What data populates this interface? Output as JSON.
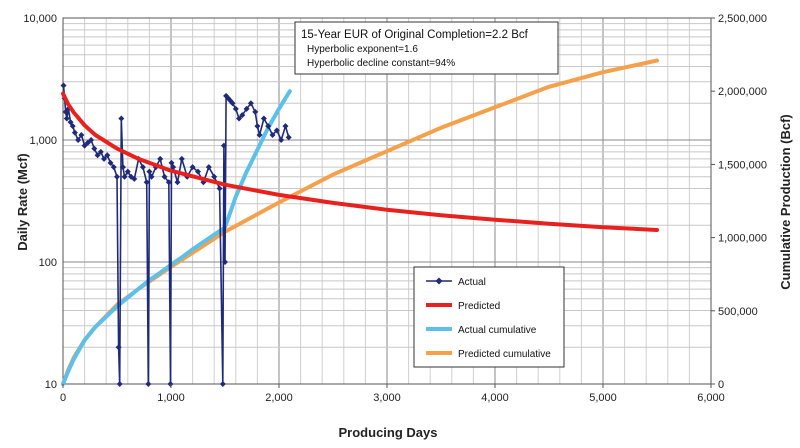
{
  "chart_data": {
    "type": "line",
    "xlabel": "Producing Days",
    "ylabel_left": "Daily Rate (Mcf)",
    "ylabel_right": "Cumulative Production (Bcf)",
    "x_axis": {
      "min": 0,
      "max": 6000,
      "ticks": [
        0,
        1000,
        2000,
        3000,
        4000,
        5000,
        6000
      ],
      "tick_labels": [
        "0",
        "1,000",
        "2,000",
        "3,000",
        "4,000",
        "5,000",
        "6,000"
      ]
    },
    "y_left_axis": {
      "scale": "log",
      "min": 10,
      "max": 10000,
      "ticks": [
        10,
        100,
        1000,
        10000
      ],
      "tick_labels": [
        "10",
        "100",
        "1,000",
        "10,000"
      ]
    },
    "y_right_axis": {
      "min": 0,
      "max": 2500000,
      "ticks": [
        0,
        500000,
        1000000,
        1500000,
        2000000,
        2500000
      ],
      "tick_labels": [
        "0",
        "500,000",
        "1,000,000",
        "1,500,000",
        "2,000,000",
        "2,500,000"
      ]
    },
    "grid": true,
    "annotation": {
      "title": "15-Year EUR of Original Completion=2.2 Bcf",
      "lines": [
        "Hyperbolic exponent=1.6",
        "Hyperbolic decline constant=94%"
      ],
      "placement": "top-center"
    },
    "legend_placement": "lower-right",
    "series": [
      {
        "name": "Actual",
        "axis": "left",
        "color": "#1f2a7a",
        "style": "line-with-diamond-markers",
        "x": [
          5,
          15,
          25,
          35,
          50,
          70,
          90,
          110,
          140,
          170,
          200,
          230,
          260,
          290,
          320,
          350,
          380,
          410,
          440,
          470,
          500,
          515,
          525,
          540,
          555,
          570,
          600,
          630,
          660,
          700,
          740,
          775,
          790,
          800,
          820,
          860,
          900,
          940,
          980,
          995,
          1005,
          1020,
          1060,
          1100,
          1150,
          1200,
          1250,
          1300,
          1350,
          1400,
          1450,
          1480,
          1490,
          1500,
          1510,
          1530,
          1550,
          1570,
          1600,
          1630,
          1660,
          1700,
          1740,
          1780,
          1800,
          1820,
          1860,
          1900,
          1940,
          1980,
          2020,
          2060,
          2090
        ],
        "y": [
          2800,
          2200,
          1700,
          1500,
          1800,
          1400,
          1300,
          1150,
          1000,
          1100,
          900,
          950,
          1000,
          850,
          750,
          800,
          700,
          750,
          650,
          600,
          500,
          20,
          10,
          1500,
          600,
          500,
          550,
          500,
          480,
          700,
          600,
          450,
          10,
          550,
          500,
          600,
          700,
          500,
          450,
          10,
          650,
          600,
          450,
          700,
          500,
          600,
          550,
          450,
          600,
          500,
          400,
          10,
          900,
          100,
          2300,
          2200,
          2100,
          2000,
          1800,
          1500,
          1600,
          1800,
          2000,
          1700,
          1300,
          1100,
          1500,
          1300,
          1100,
          1200,
          1000,
          1300,
          1050
        ]
      },
      {
        "name": "Predicted",
        "axis": "left",
        "color": "#e8211e",
        "style": "thick-line",
        "x": [
          0,
          50,
          100,
          200,
          300,
          500,
          700,
          1000,
          1500,
          2000,
          2500,
          3000,
          3500,
          4000,
          4500,
          5000,
          5500
        ],
        "y": [
          2400,
          1950,
          1680,
          1320,
          1100,
          850,
          700,
          560,
          430,
          355,
          305,
          268,
          242,
          222,
          206,
          193,
          183
        ]
      },
      {
        "name": "Actual cumulative",
        "axis": "right",
        "color": "#5bc0ea",
        "style": "thick-line",
        "x": [
          0,
          50,
          100,
          200,
          300,
          400,
          500,
          600,
          700,
          800,
          900,
          1000,
          1100,
          1200,
          1300,
          1400,
          1500,
          1600,
          1700,
          1800,
          1900,
          2000,
          2100
        ],
        "y": [
          0,
          90000,
          170000,
          300000,
          390000,
          460000,
          530000,
          590000,
          650000,
          710000,
          760000,
          815000,
          865000,
          920000,
          970000,
          1020000,
          1070000,
          1280000,
          1450000,
          1600000,
          1750000,
          1880000,
          2000000
        ]
      },
      {
        "name": "Predicted cumulative",
        "axis": "right",
        "color": "#f5a04a",
        "style": "thick-line",
        "x": [
          0,
          50,
          100,
          200,
          300,
          500,
          700,
          1000,
          1500,
          2000,
          2500,
          3000,
          3500,
          4000,
          4500,
          5000,
          5500
        ],
        "y": [
          0,
          100000,
          180000,
          300000,
          390000,
          540000,
          650000,
          800000,
          1040000,
          1240000,
          1430000,
          1590000,
          1750000,
          1890000,
          2030000,
          2130000,
          2210000
        ]
      }
    ]
  }
}
